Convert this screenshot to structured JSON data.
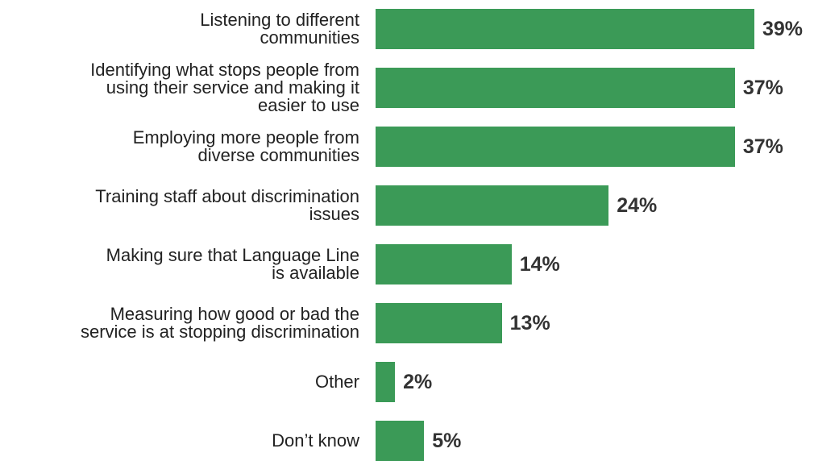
{
  "chart_data": {
    "type": "bar",
    "orientation": "horizontal",
    "categories": [
      [
        "Listening to different",
        "communities"
      ],
      [
        "Identifying what stops people from",
        "using their service and making it",
        "easier to use"
      ],
      [
        "Employing more people from",
        "diverse communities"
      ],
      [
        "Training staff about discrimination",
        "issues"
      ],
      [
        "Making sure that Language Line",
        "is available"
      ],
      [
        "Measuring how good or bad the",
        "service is at stopping discrimination"
      ],
      [
        "Other"
      ],
      [
        "Don’t know"
      ]
    ],
    "values": [
      39,
      37,
      37,
      24,
      14,
      13,
      2,
      5
    ],
    "value_labels": [
      "39%",
      "37%",
      "37%",
      "24%",
      "14%",
      "13%",
      "2%",
      "5%"
    ],
    "color": "#3b9a57"
  }
}
